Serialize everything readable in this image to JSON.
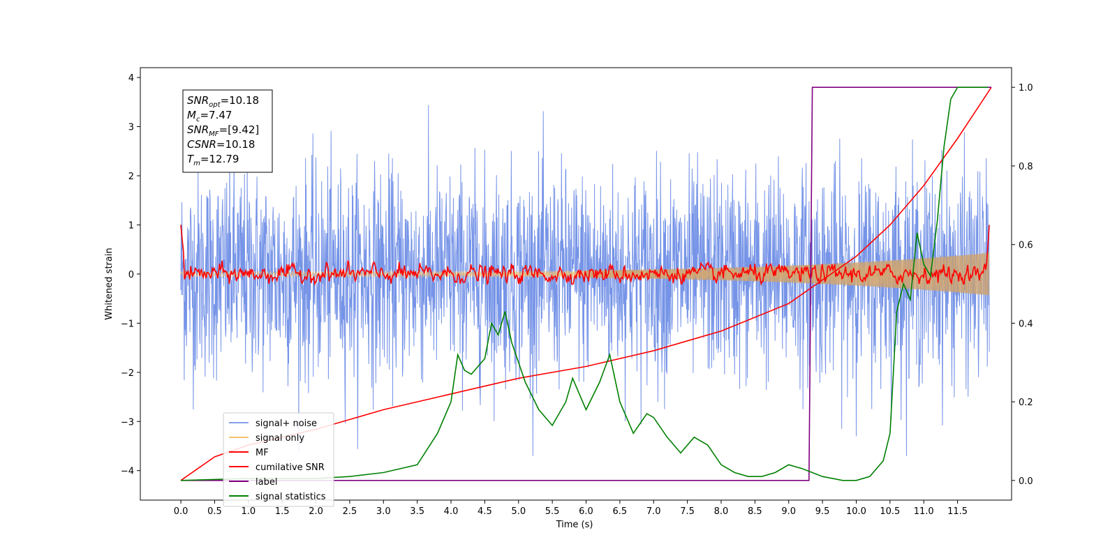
{
  "chart_data": {
    "type": "line",
    "xlabel": "Time (s)",
    "ylabel": "Whitened strain",
    "xlim": [
      -0.6,
      12.3
    ],
    "ylim": [
      -4.6,
      4.2
    ],
    "y2lim": [
      -0.05,
      1.05
    ],
    "x_ticks": [
      "0.0",
      "0.5",
      "1.0",
      "1.5",
      "2.0",
      "2.5",
      "3.0",
      "3.5",
      "4.0",
      "4.5",
      "5.0",
      "5.5",
      "6.0",
      "6.5",
      "7.0",
      "7.5",
      "8.0",
      "8.5",
      "9.0",
      "9.5",
      "10.0",
      "10.5",
      "11.0",
      "11.5"
    ],
    "y_ticks": [
      "−4",
      "−3",
      "−2",
      "−1",
      "0",
      "1",
      "2",
      "3",
      "4"
    ],
    "y2_ticks": [
      "0.0",
      "0.2",
      "0.4",
      "0.6",
      "0.8",
      "1.0"
    ],
    "legend_position": "lower-left",
    "annotation": {
      "snr_opt": {
        "main": "SNR",
        "sub": "opt",
        "value": "=10.18"
      },
      "mc": {
        "main": "M",
        "sub": "c",
        "value": "=7.47"
      },
      "snr_mf": {
        "main": "SNR",
        "sub": "MF",
        "value": "=[9.42]"
      },
      "csnr": {
        "main": "CSNR",
        "sub": "",
        "value": "=10.18"
      },
      "tm": {
        "main": "T",
        "sub": "m",
        "value": "=12.79"
      }
    },
    "series": [
      {
        "name": "signal+ noise",
        "color": "#6f8ee6",
        "axis": "left",
        "description": "noise band approx. between -2 and +2 with spikes to ±3.7"
      },
      {
        "name": "signal only",
        "color": "#f5c26b",
        "axis": "left"
      },
      {
        "name": "MF",
        "color": "#ff0000",
        "axis": "left"
      },
      {
        "name": "cumilative SNR",
        "color": "#ff0000",
        "axis": "right",
        "x": [
          0.0,
          0.5,
          1.0,
          2.0,
          3.0,
          4.0,
          5.0,
          6.0,
          7.0,
          8.0,
          9.0,
          9.5,
          10.0,
          10.5,
          11.0,
          11.5,
          12.0
        ],
        "y": [
          0.0,
          0.06,
          0.09,
          0.13,
          0.18,
          0.22,
          0.26,
          0.29,
          0.33,
          0.38,
          0.45,
          0.51,
          0.57,
          0.65,
          0.75,
          0.87,
          1.0
        ]
      },
      {
        "name": "label",
        "color": "#800080",
        "axis": "right",
        "x": [
          0.0,
          9.3,
          9.35,
          12.0
        ],
        "y": [
          0.0,
          0.0,
          1.0,
          1.0
        ]
      },
      {
        "name": "signal statistics",
        "color": "#008000",
        "axis": "right",
        "x": [
          0.0,
          1.0,
          2.0,
          2.5,
          3.0,
          3.5,
          3.8,
          4.0,
          4.1,
          4.2,
          4.3,
          4.5,
          4.6,
          4.7,
          4.8,
          4.9,
          5.0,
          5.1,
          5.3,
          5.5,
          5.7,
          5.8,
          6.0,
          6.2,
          6.35,
          6.5,
          6.7,
          6.9,
          7.0,
          7.2,
          7.4,
          7.6,
          7.8,
          8.0,
          8.2,
          8.4,
          8.6,
          8.8,
          9.0,
          9.2,
          9.5,
          9.8,
          10.0,
          10.2,
          10.4,
          10.5,
          10.6,
          10.7,
          10.8,
          10.9,
          11.0,
          11.1,
          11.2,
          11.3,
          11.4,
          11.5,
          11.6,
          11.8,
          11.95
        ],
        "y": [
          0.0,
          0.005,
          0.005,
          0.01,
          0.02,
          0.04,
          0.12,
          0.2,
          0.32,
          0.28,
          0.27,
          0.31,
          0.4,
          0.37,
          0.43,
          0.35,
          0.3,
          0.25,
          0.18,
          0.14,
          0.2,
          0.26,
          0.18,
          0.25,
          0.32,
          0.2,
          0.12,
          0.17,
          0.16,
          0.11,
          0.07,
          0.11,
          0.09,
          0.04,
          0.02,
          0.01,
          0.01,
          0.02,
          0.04,
          0.03,
          0.01,
          0.0,
          0.0,
          0.01,
          0.05,
          0.12,
          0.43,
          0.5,
          0.46,
          0.63,
          0.55,
          0.52,
          0.66,
          0.85,
          0.97,
          1.0,
          1.0,
          1.0,
          1.0
        ]
      }
    ]
  }
}
